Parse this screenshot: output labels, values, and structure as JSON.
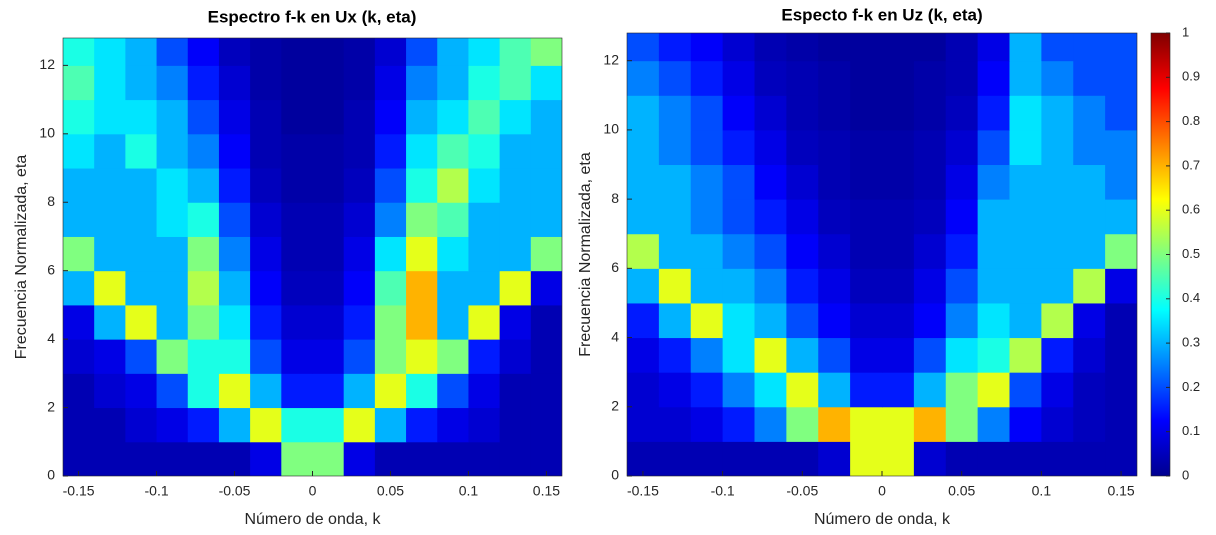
{
  "chart_data": [
    {
      "type": "heatmap",
      "title": "Espectro f-k en Ux (k, eta)",
      "xlabel": "Número de onda, k",
      "ylabel": "Frecuencia Normalizada, eta",
      "x": [
        -0.15,
        -0.13,
        -0.11,
        -0.09,
        -0.07,
        -0.05,
        -0.03,
        -0.01,
        0.01,
        0.03,
        0.05,
        0.07,
        0.09,
        0.11,
        0.13,
        0.15
      ],
      "y": [
        0.5,
        1.5,
        2.5,
        3.5,
        4.5,
        5.5,
        6.5,
        7.5,
        8.5,
        9.5,
        10.5,
        11.5,
        12.5
      ],
      "z": [
        [
          0.05,
          0.05,
          0.05,
          0.05,
          0.05,
          0.05,
          0.1,
          0.5,
          0.5,
          0.1,
          0.05,
          0.05,
          0.05,
          0.05,
          0.05,
          0.05
        ],
        [
          0.05,
          0.05,
          0.08,
          0.1,
          0.15,
          0.3,
          0.6,
          0.4,
          0.4,
          0.6,
          0.3,
          0.15,
          0.1,
          0.08,
          0.05,
          0.05
        ],
        [
          0.05,
          0.08,
          0.1,
          0.2,
          0.4,
          0.6,
          0.3,
          0.15,
          0.15,
          0.3,
          0.6,
          0.4,
          0.2,
          0.1,
          0.05,
          0.05
        ],
        [
          0.08,
          0.1,
          0.2,
          0.5,
          0.4,
          0.4,
          0.2,
          0.1,
          0.1,
          0.2,
          0.5,
          0.6,
          0.5,
          0.15,
          0.08,
          0.05
        ],
        [
          0.1,
          0.3,
          0.6,
          0.3,
          0.5,
          0.35,
          0.15,
          0.08,
          0.08,
          0.15,
          0.5,
          0.7,
          0.3,
          0.6,
          0.1,
          0.05
        ],
        [
          0.3,
          0.6,
          0.3,
          0.3,
          0.55,
          0.3,
          0.12,
          0.06,
          0.06,
          0.12,
          0.45,
          0.7,
          0.3,
          0.3,
          0.6,
          0.1
        ],
        [
          0.5,
          0.3,
          0.3,
          0.3,
          0.5,
          0.25,
          0.1,
          0.05,
          0.05,
          0.1,
          0.35,
          0.6,
          0.35,
          0.3,
          0.3,
          0.5
        ],
        [
          0.3,
          0.3,
          0.3,
          0.35,
          0.4,
          0.2,
          0.08,
          0.05,
          0.05,
          0.08,
          0.25,
          0.5,
          0.45,
          0.3,
          0.3,
          0.3
        ],
        [
          0.3,
          0.3,
          0.3,
          0.35,
          0.3,
          0.15,
          0.06,
          0.04,
          0.04,
          0.06,
          0.2,
          0.4,
          0.55,
          0.35,
          0.3,
          0.3
        ],
        [
          0.35,
          0.3,
          0.4,
          0.3,
          0.25,
          0.12,
          0.05,
          0.04,
          0.04,
          0.05,
          0.15,
          0.35,
          0.45,
          0.4,
          0.3,
          0.3
        ],
        [
          0.4,
          0.35,
          0.35,
          0.3,
          0.2,
          0.1,
          0.05,
          0.03,
          0.03,
          0.05,
          0.12,
          0.3,
          0.35,
          0.45,
          0.35,
          0.3
        ],
        [
          0.45,
          0.35,
          0.3,
          0.25,
          0.15,
          0.08,
          0.04,
          0.03,
          0.03,
          0.04,
          0.1,
          0.25,
          0.3,
          0.4,
          0.45,
          0.35
        ],
        [
          0.4,
          0.35,
          0.3,
          0.2,
          0.12,
          0.06,
          0.04,
          0.03,
          0.03,
          0.04,
          0.08,
          0.2,
          0.3,
          0.35,
          0.45,
          0.5
        ]
      ],
      "xlim": [
        -0.16,
        0.16
      ],
      "ylim": [
        0,
        12.8
      ],
      "xticks": [
        -0.15,
        -0.1,
        -0.05,
        0,
        0.05,
        0.1,
        0.15
      ],
      "yticks": [
        0,
        2,
        4,
        6,
        8,
        10,
        12
      ],
      "colormap": "jet",
      "clim": [
        0,
        1
      ]
    },
    {
      "type": "heatmap",
      "title": "Especto f-k en Uz (k, eta)",
      "xlabel": "Número de onda, k",
      "ylabel": "Frecuencia Normalizada, eta",
      "x": [
        -0.15,
        -0.13,
        -0.11,
        -0.09,
        -0.07,
        -0.05,
        -0.03,
        -0.01,
        0.01,
        0.03,
        0.05,
        0.07,
        0.09,
        0.11,
        0.13,
        0.15
      ],
      "y": [
        0.5,
        1.5,
        2.5,
        3.5,
        4.5,
        5.5,
        6.5,
        7.5,
        8.5,
        9.5,
        10.5,
        11.5,
        12.5
      ],
      "z": [
        [
          0.05,
          0.05,
          0.05,
          0.05,
          0.05,
          0.05,
          0.08,
          0.6,
          0.6,
          0.08,
          0.05,
          0.05,
          0.05,
          0.05,
          0.05,
          0.05
        ],
        [
          0.08,
          0.08,
          0.1,
          0.15,
          0.25,
          0.5,
          0.7,
          0.6,
          0.6,
          0.7,
          0.5,
          0.25,
          0.12,
          0.08,
          0.06,
          0.05
        ],
        [
          0.08,
          0.1,
          0.15,
          0.25,
          0.35,
          0.6,
          0.3,
          0.15,
          0.15,
          0.3,
          0.5,
          0.6,
          0.2,
          0.1,
          0.06,
          0.05
        ],
        [
          0.1,
          0.15,
          0.25,
          0.35,
          0.6,
          0.3,
          0.2,
          0.1,
          0.1,
          0.2,
          0.35,
          0.4,
          0.55,
          0.15,
          0.08,
          0.05
        ],
        [
          0.15,
          0.3,
          0.6,
          0.35,
          0.3,
          0.2,
          0.12,
          0.08,
          0.08,
          0.12,
          0.25,
          0.35,
          0.3,
          0.55,
          0.1,
          0.05
        ],
        [
          0.3,
          0.6,
          0.3,
          0.3,
          0.25,
          0.15,
          0.1,
          0.06,
          0.06,
          0.1,
          0.2,
          0.3,
          0.3,
          0.3,
          0.55,
          0.1
        ],
        [
          0.55,
          0.3,
          0.3,
          0.25,
          0.2,
          0.12,
          0.08,
          0.05,
          0.05,
          0.08,
          0.15,
          0.3,
          0.3,
          0.3,
          0.3,
          0.5
        ],
        [
          0.3,
          0.3,
          0.25,
          0.2,
          0.15,
          0.1,
          0.06,
          0.05,
          0.05,
          0.06,
          0.12,
          0.3,
          0.3,
          0.3,
          0.3,
          0.3
        ],
        [
          0.3,
          0.3,
          0.25,
          0.2,
          0.12,
          0.08,
          0.05,
          0.04,
          0.04,
          0.05,
          0.1,
          0.25,
          0.3,
          0.3,
          0.3,
          0.25
        ],
        [
          0.3,
          0.25,
          0.2,
          0.15,
          0.1,
          0.06,
          0.05,
          0.04,
          0.04,
          0.05,
          0.08,
          0.2,
          0.35,
          0.3,
          0.25,
          0.25
        ],
        [
          0.3,
          0.25,
          0.2,
          0.12,
          0.08,
          0.05,
          0.04,
          0.03,
          0.03,
          0.04,
          0.06,
          0.15,
          0.35,
          0.3,
          0.25,
          0.2
        ],
        [
          0.25,
          0.2,
          0.15,
          0.1,
          0.06,
          0.05,
          0.04,
          0.03,
          0.03,
          0.04,
          0.05,
          0.12,
          0.3,
          0.25,
          0.2,
          0.2
        ],
        [
          0.2,
          0.15,
          0.12,
          0.08,
          0.05,
          0.04,
          0.03,
          0.03,
          0.03,
          0.03,
          0.05,
          0.1,
          0.3,
          0.2,
          0.2,
          0.2
        ]
      ],
      "xlim": [
        -0.16,
        0.16
      ],
      "ylim": [
        0,
        12.8
      ],
      "xticks": [
        -0.15,
        -0.1,
        -0.05,
        0,
        0.05,
        0.1,
        0.15
      ],
      "yticks": [
        0,
        2,
        4,
        6,
        8,
        10,
        12
      ],
      "colormap": "jet",
      "clim": [
        0,
        1
      ],
      "colorbar": true,
      "cticks": [
        0,
        0.1,
        0.2,
        0.3,
        0.4,
        0.5,
        0.6,
        0.7,
        0.8,
        0.9,
        1
      ]
    }
  ]
}
